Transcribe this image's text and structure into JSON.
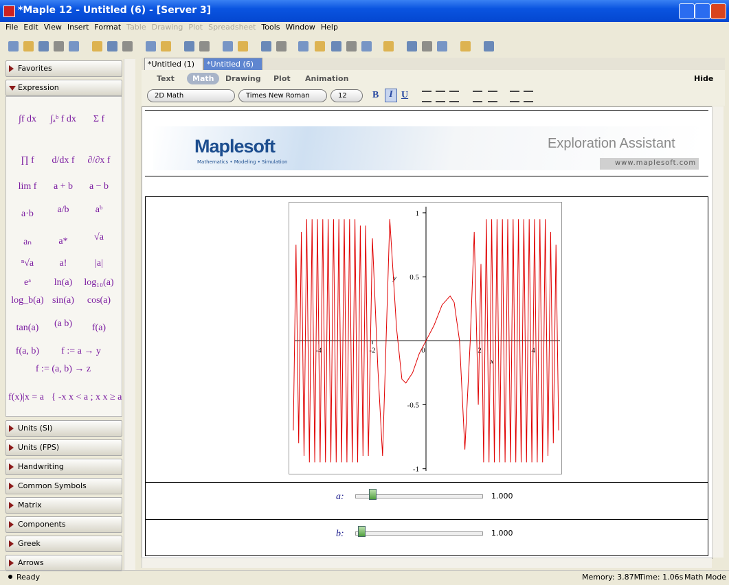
{
  "window": {
    "title": "*Maple 12 - Untitled (6) - [Server 3]"
  },
  "menu": [
    {
      "label": "File"
    },
    {
      "label": "Edit"
    },
    {
      "label": "View"
    },
    {
      "label": "Insert"
    },
    {
      "label": "Format"
    },
    {
      "label": "Table",
      "enabled": false
    },
    {
      "label": "Drawing",
      "enabled": false
    },
    {
      "label": "Plot",
      "enabled": false
    },
    {
      "label": "Spreadsheet",
      "enabled": false
    },
    {
      "label": "Tools"
    },
    {
      "label": "Window"
    },
    {
      "label": "Help"
    }
  ],
  "palettes": {
    "favorites": "Favorites",
    "expression": "Expression",
    "expression_items": [
      "∫f dx",
      "∫ₐᵇ f dx",
      "Σ f",
      "∏ f",
      "d/dx f",
      "∂/∂x f",
      "lim f",
      "a + b",
      "a − b",
      "a·b",
      "a/b",
      "aᵇ",
      "aₙ",
      "a*",
      "√a",
      "ⁿ√a",
      "a!",
      "|a|",
      "eᵃ",
      "ln(a)",
      "log₁₀(a)",
      "log_b(a)",
      "sin(a)",
      "cos(a)",
      "tan(a)",
      "(a b)",
      "f(a)",
      "f(a, b)",
      "f := a → y",
      "f := (a, b) → z",
      "f(x)|x = a",
      "{ -x  x < a ; x  x ≥ a"
    ],
    "others": [
      "Units (SI)",
      "Units (FPS)",
      "Handwriting",
      "Common Symbols",
      "Matrix",
      "Components",
      "Greek",
      "Arrows"
    ]
  },
  "tabs": [
    "*Untitled (1)",
    "*Untitled (6)"
  ],
  "context_bar": {
    "modes": [
      "Text",
      "Math",
      "Drawing",
      "Plot",
      "Animation"
    ],
    "hide": "Hide",
    "style": "2D Math",
    "font": "Times New Roman",
    "size": "12",
    "bold": "B",
    "italic": "I",
    "underline": "U"
  },
  "banner": {
    "logo": "Maplesoft",
    "tagline": "Mathematics • Modeling • Simulation",
    "title": "Exploration Assistant",
    "url": "www.maplesoft.com"
  },
  "plot": {
    "xlim": [
      -5.1,
      5.1
    ],
    "ylim": [
      -1.05,
      1.08
    ],
    "xticks": [
      -4,
      -2,
      0,
      2,
      4
    ],
    "yticks": [
      -1,
      -0.5,
      0.5,
      1
    ],
    "xlabel": "x",
    "ylabel": "y",
    "color": "#e00000",
    "x": [
      -4.95,
      -4.85,
      -4.75,
      -4.65,
      -4.55,
      -4.45,
      -4.35,
      -4.25,
      -4.15,
      -4.05,
      -3.95,
      -3.85,
      -3.75,
      -3.65,
      -3.55,
      -3.45,
      -3.35,
      -3.25,
      -3.15,
      -3.05,
      -2.95,
      -2.85,
      -2.75,
      -2.65,
      -2.55,
      -2.45,
      -2.35,
      -2.25,
      -2.15,
      -2.0,
      -1.8,
      -1.62,
      -1.35,
      -1.1,
      -0.9,
      -0.75,
      -0.5,
      -0.25,
      0,
      0.3,
      0.6,
      0.9,
      1.05,
      1.25,
      1.45,
      1.65,
      1.8,
      1.95,
      2.05,
      2.15,
      2.25,
      2.35,
      2.45,
      2.55,
      2.65,
      2.75,
      2.85,
      2.95,
      3.05,
      3.15,
      3.25,
      3.35,
      3.45,
      3.55,
      3.65,
      3.75,
      3.85,
      3.95,
      4.05,
      4.15,
      4.25,
      4.35,
      4.45,
      4.55,
      4.65,
      4.75,
      4.85,
      4.95
    ],
    "y": [
      -0.7,
      0.75,
      -0.8,
      0.85,
      -0.9,
      0.95,
      -0.95,
      0.95,
      -0.95,
      0.95,
      -0.95,
      0.95,
      -0.95,
      0.95,
      -0.95,
      0.95,
      -0.95,
      0.95,
      -0.95,
      0.95,
      -0.95,
      0.95,
      -0.95,
      0.95,
      -0.95,
      0.9,
      -0.9,
      0.9,
      -0.9,
      0.8,
      -0.2,
      -0.9,
      0.95,
      0.1,
      -0.3,
      -0.33,
      -0.25,
      -0.1,
      0,
      0.12,
      0.28,
      0.35,
      0.3,
      0,
      -0.85,
      0,
      0.85,
      -0.5,
      0.6,
      -0.95,
      0.95,
      -0.95,
      0.95,
      -0.95,
      0.95,
      -0.95,
      0.95,
      -0.95,
      0.95,
      -0.95,
      0.95,
      -0.95,
      0.95,
      -0.95,
      0.95,
      -0.95,
      0.95,
      -0.95,
      0.95,
      -0.95,
      0.95,
      -0.95,
      0.95,
      -0.9,
      0.85,
      -0.8,
      0.75,
      -0.7
    ]
  },
  "sliders": [
    {
      "label": "a:",
      "value_label": "1.000"
    },
    {
      "label": "b:",
      "value_label": "1.000"
    }
  ],
  "status": {
    "state": "Ready",
    "memory": "Memory: 3.87M",
    "time": "Time: 1.06s",
    "mode": "Math Mode"
  }
}
